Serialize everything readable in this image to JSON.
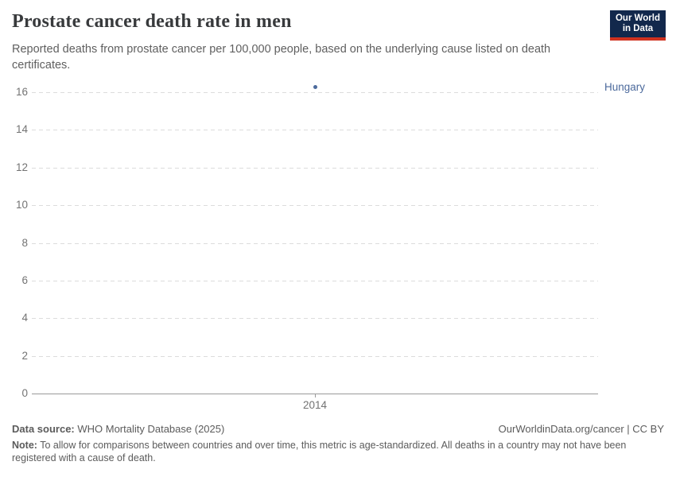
{
  "header": {
    "title": "Prostate cancer death rate in men",
    "subtitle": "Reported deaths from prostate cancer per 100,000 people, based on the underlying cause listed on death certificates."
  },
  "logo": {
    "line1": "Our World",
    "line2": "in Data",
    "bg_color": "#12284C",
    "accent_color": "#d0321f"
  },
  "chart_data": {
    "type": "scatter",
    "title": "Prostate cancer death rate in men",
    "xlabel": "",
    "ylabel": "",
    "ylim": [
      0,
      16
    ],
    "yticks": [
      0,
      2,
      4,
      6,
      8,
      10,
      12,
      14,
      16
    ],
    "xticks": [
      "2014"
    ],
    "grid": "horizontal-dashed",
    "legend_position": "right-of-point",
    "series": [
      {
        "name": "Hungary",
        "color": "#4C6A9C",
        "points": [
          {
            "x": "2014",
            "y": 16.3
          }
        ]
      }
    ]
  },
  "footer": {
    "data_source_label": "Data source:",
    "data_source_value": " WHO Mortality Database (2025)",
    "attribution": "OurWorldinData.org/cancer | CC BY",
    "note_label": "Note:",
    "note_text": " To allow for comparisons between countries and over time, this metric is age-standardized. All deaths in a country may not have been registered with a cause of death."
  }
}
